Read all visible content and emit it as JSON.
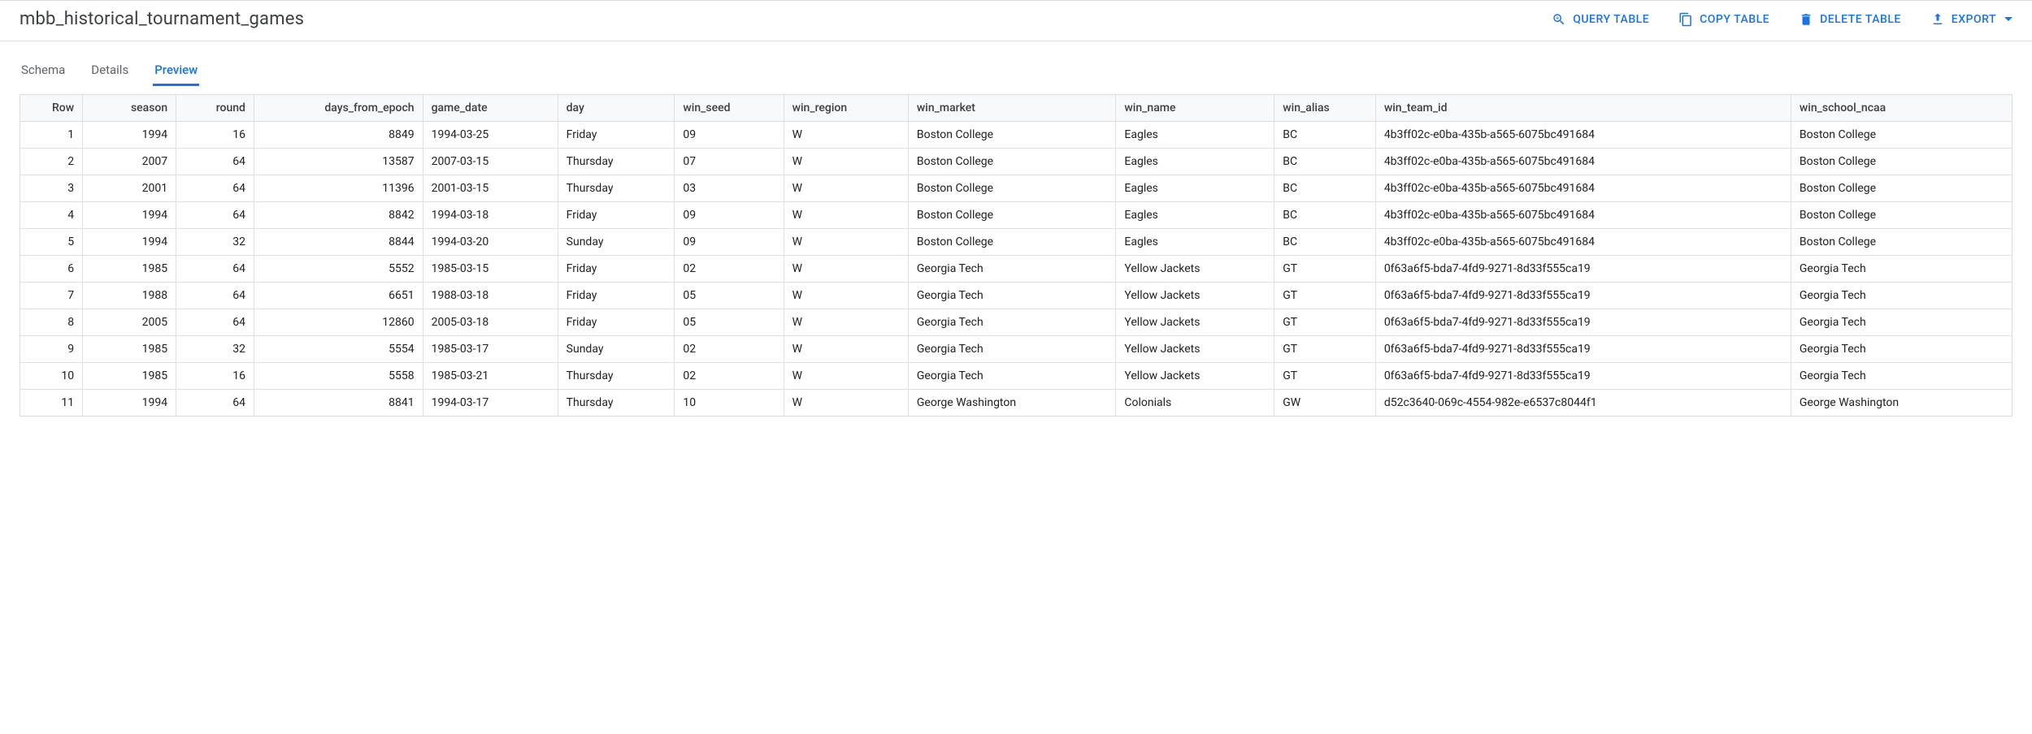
{
  "header": {
    "title": "mbb_historical_tournament_games",
    "actions": {
      "query": "QUERY TABLE",
      "copy": "COPY TABLE",
      "delete": "DELETE TABLE",
      "export": "EXPORT"
    }
  },
  "tabs": {
    "schema": "Schema",
    "details": "Details",
    "preview": "Preview"
  },
  "table": {
    "columns": [
      "Row",
      "season",
      "round",
      "days_from_epoch",
      "game_date",
      "day",
      "win_seed",
      "win_region",
      "win_market",
      "win_name",
      "win_alias",
      "win_team_id",
      "win_school_ncaa"
    ],
    "rows": [
      [
        "1",
        "1994",
        "16",
        "8849",
        "1994-03-25",
        "Friday",
        "09",
        "W",
        "Boston College",
        "Eagles",
        "BC",
        "4b3ff02c-e0ba-435b-a565-6075bc491684",
        "Boston College"
      ],
      [
        "2",
        "2007",
        "64",
        "13587",
        "2007-03-15",
        "Thursday",
        "07",
        "W",
        "Boston College",
        "Eagles",
        "BC",
        "4b3ff02c-e0ba-435b-a565-6075bc491684",
        "Boston College"
      ],
      [
        "3",
        "2001",
        "64",
        "11396",
        "2001-03-15",
        "Thursday",
        "03",
        "W",
        "Boston College",
        "Eagles",
        "BC",
        "4b3ff02c-e0ba-435b-a565-6075bc491684",
        "Boston College"
      ],
      [
        "4",
        "1994",
        "64",
        "8842",
        "1994-03-18",
        "Friday",
        "09",
        "W",
        "Boston College",
        "Eagles",
        "BC",
        "4b3ff02c-e0ba-435b-a565-6075bc491684",
        "Boston College"
      ],
      [
        "5",
        "1994",
        "32",
        "8844",
        "1994-03-20",
        "Sunday",
        "09",
        "W",
        "Boston College",
        "Eagles",
        "BC",
        "4b3ff02c-e0ba-435b-a565-6075bc491684",
        "Boston College"
      ],
      [
        "6",
        "1985",
        "64",
        "5552",
        "1985-03-15",
        "Friday",
        "02",
        "W",
        "Georgia Tech",
        "Yellow Jackets",
        "GT",
        "0f63a6f5-bda7-4fd9-9271-8d33f555ca19",
        "Georgia Tech"
      ],
      [
        "7",
        "1988",
        "64",
        "6651",
        "1988-03-18",
        "Friday",
        "05",
        "W",
        "Georgia Tech",
        "Yellow Jackets",
        "GT",
        "0f63a6f5-bda7-4fd9-9271-8d33f555ca19",
        "Georgia Tech"
      ],
      [
        "8",
        "2005",
        "64",
        "12860",
        "2005-03-18",
        "Friday",
        "05",
        "W",
        "Georgia Tech",
        "Yellow Jackets",
        "GT",
        "0f63a6f5-bda7-4fd9-9271-8d33f555ca19",
        "Georgia Tech"
      ],
      [
        "9",
        "1985",
        "32",
        "5554",
        "1985-03-17",
        "Sunday",
        "02",
        "W",
        "Georgia Tech",
        "Yellow Jackets",
        "GT",
        "0f63a6f5-bda7-4fd9-9271-8d33f555ca19",
        "Georgia Tech"
      ],
      [
        "10",
        "1985",
        "16",
        "5558",
        "1985-03-21",
        "Thursday",
        "02",
        "W",
        "Georgia Tech",
        "Yellow Jackets",
        "GT",
        "0f63a6f5-bda7-4fd9-9271-8d33f555ca19",
        "Georgia Tech"
      ],
      [
        "11",
        "1994",
        "64",
        "8841",
        "1994-03-17",
        "Thursday",
        "10",
        "W",
        "George Washington",
        "Colonials",
        "GW",
        "d52c3640-069c-4554-982e-e6537c8044f1",
        "George Washington"
      ]
    ],
    "numeric_cols": [
      0,
      1,
      2,
      3
    ]
  }
}
